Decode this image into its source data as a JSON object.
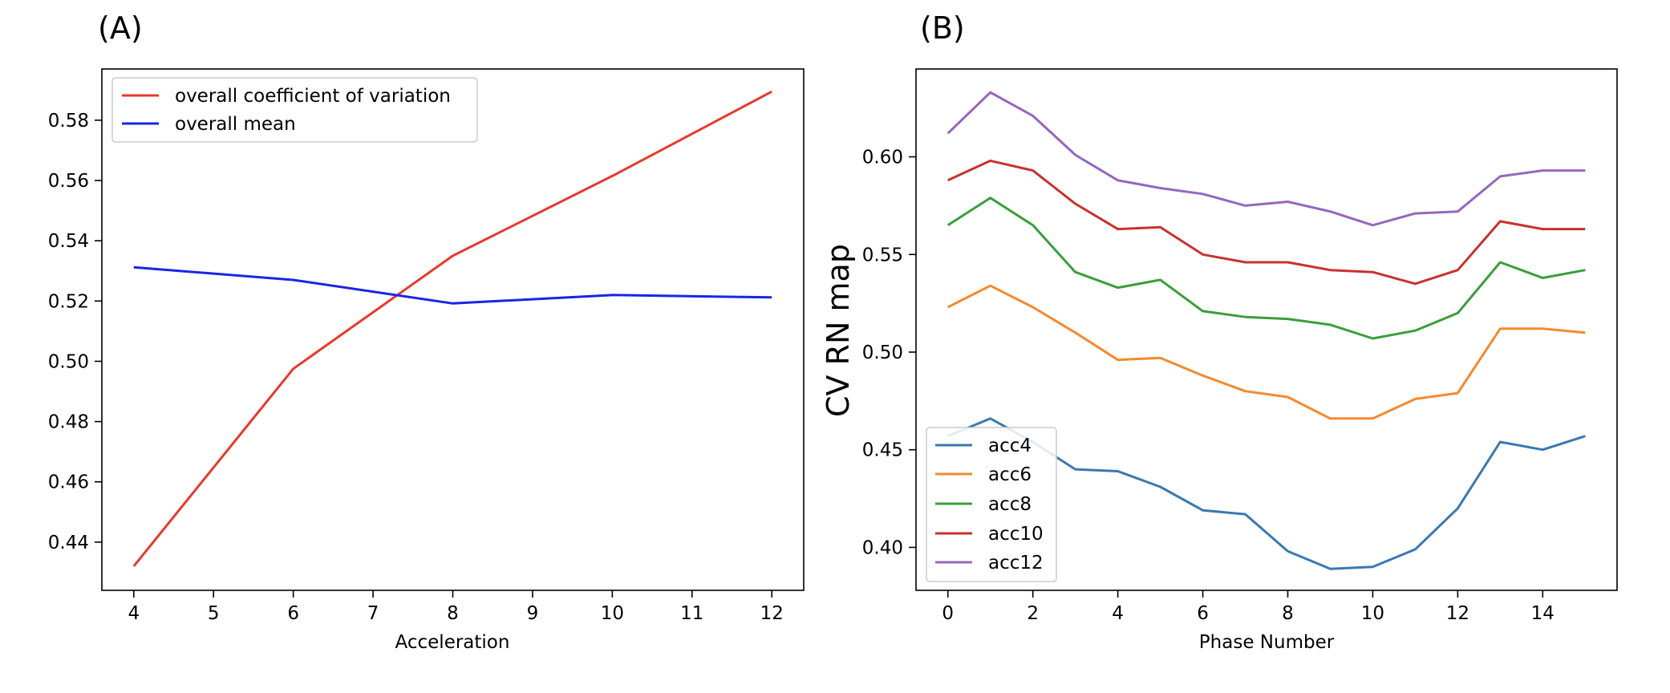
{
  "chart_data": [
    {
      "panel_label": "(A)",
      "type": "line",
      "xlabel": "Acceleration",
      "ylabel": "",
      "xlim": [
        3.6,
        12.4
      ],
      "ylim": [
        0.424,
        0.597
      ],
      "xticks": [
        4,
        5,
        6,
        7,
        8,
        9,
        10,
        11,
        12
      ],
      "yticks": [
        0.44,
        0.46,
        0.48,
        0.5,
        0.52,
        0.54,
        0.56,
        0.58
      ],
      "ytick_labels": [
        "0.44",
        "0.46",
        "0.48",
        "0.50",
        "0.52",
        "0.54",
        "0.56",
        "0.58"
      ],
      "legend_position": "upper-left",
      "series": [
        {
          "name": "overall coefficient of variation",
          "color": "#e8392b",
          "x": [
            4,
            6,
            8,
            10,
            12
          ],
          "values": [
            0.432,
            0.4975,
            0.535,
            0.5615,
            0.5895
          ]
        },
        {
          "name": "overall mean",
          "color": "#1a24e6",
          "x": [
            4,
            6,
            8,
            10,
            12
          ],
          "values": [
            0.5312,
            0.527,
            0.5192,
            0.522,
            0.5212
          ]
        }
      ]
    },
    {
      "panel_label": "(B)",
      "type": "line",
      "xlabel": "Phase Number",
      "ylabel": "CV RN map",
      "xlim": [
        -0.75,
        15.75
      ],
      "ylim": [
        0.378,
        0.645
      ],
      "xticks": [
        0,
        2,
        4,
        6,
        8,
        10,
        12,
        14
      ],
      "yticks": [
        0.4,
        0.45,
        0.5,
        0.55,
        0.6
      ],
      "ytick_labels": [
        "0.40",
        "0.45",
        "0.50",
        "0.55",
        "0.60"
      ],
      "legend_position": "lower-left",
      "series": [
        {
          "name": "acc4",
          "color": "#3a78b0",
          "x": [
            0,
            1,
            2,
            3,
            4,
            5,
            6,
            7,
            8,
            9,
            10,
            11,
            12,
            13,
            14,
            15
          ],
          "values": [
            0.457,
            0.466,
            0.454,
            0.44,
            0.439,
            0.431,
            0.419,
            0.417,
            0.398,
            0.389,
            0.39,
            0.399,
            0.42,
            0.454,
            0.45,
            0.457
          ]
        },
        {
          "name": "acc6",
          "color": "#f28a2e",
          "x": [
            0,
            1,
            2,
            3,
            4,
            5,
            6,
            7,
            8,
            9,
            10,
            11,
            12,
            13,
            14,
            15
          ],
          "values": [
            0.523,
            0.534,
            0.523,
            0.51,
            0.496,
            0.497,
            0.488,
            0.48,
            0.477,
            0.466,
            0.466,
            0.476,
            0.479,
            0.512,
            0.512,
            0.51
          ]
        },
        {
          "name": "acc8",
          "color": "#3a9e3a",
          "x": [
            0,
            1,
            2,
            3,
            4,
            5,
            6,
            7,
            8,
            9,
            10,
            11,
            12,
            13,
            14,
            15
          ],
          "values": [
            0.565,
            0.579,
            0.565,
            0.541,
            0.533,
            0.537,
            0.521,
            0.518,
            0.517,
            0.514,
            0.507,
            0.511,
            0.52,
            0.546,
            0.538,
            0.542
          ]
        },
        {
          "name": "acc10",
          "color": "#c8312f",
          "x": [
            0,
            1,
            2,
            3,
            4,
            5,
            6,
            7,
            8,
            9,
            10,
            11,
            12,
            13,
            14,
            15
          ],
          "values": [
            0.588,
            0.598,
            0.593,
            0.576,
            0.563,
            0.564,
            0.55,
            0.546,
            0.546,
            0.542,
            0.541,
            0.535,
            0.542,
            0.567,
            0.563,
            0.563
          ]
        },
        {
          "name": "acc12",
          "color": "#9467bd",
          "x": [
            0,
            1,
            2,
            3,
            4,
            5,
            6,
            7,
            8,
            9,
            10,
            11,
            12,
            13,
            14,
            15
          ],
          "values": [
            0.612,
            0.633,
            0.621,
            0.601,
            0.588,
            0.584,
            0.581,
            0.575,
            0.577,
            0.572,
            0.565,
            0.571,
            0.572,
            0.59,
            0.593,
            0.593
          ]
        }
      ]
    }
  ]
}
